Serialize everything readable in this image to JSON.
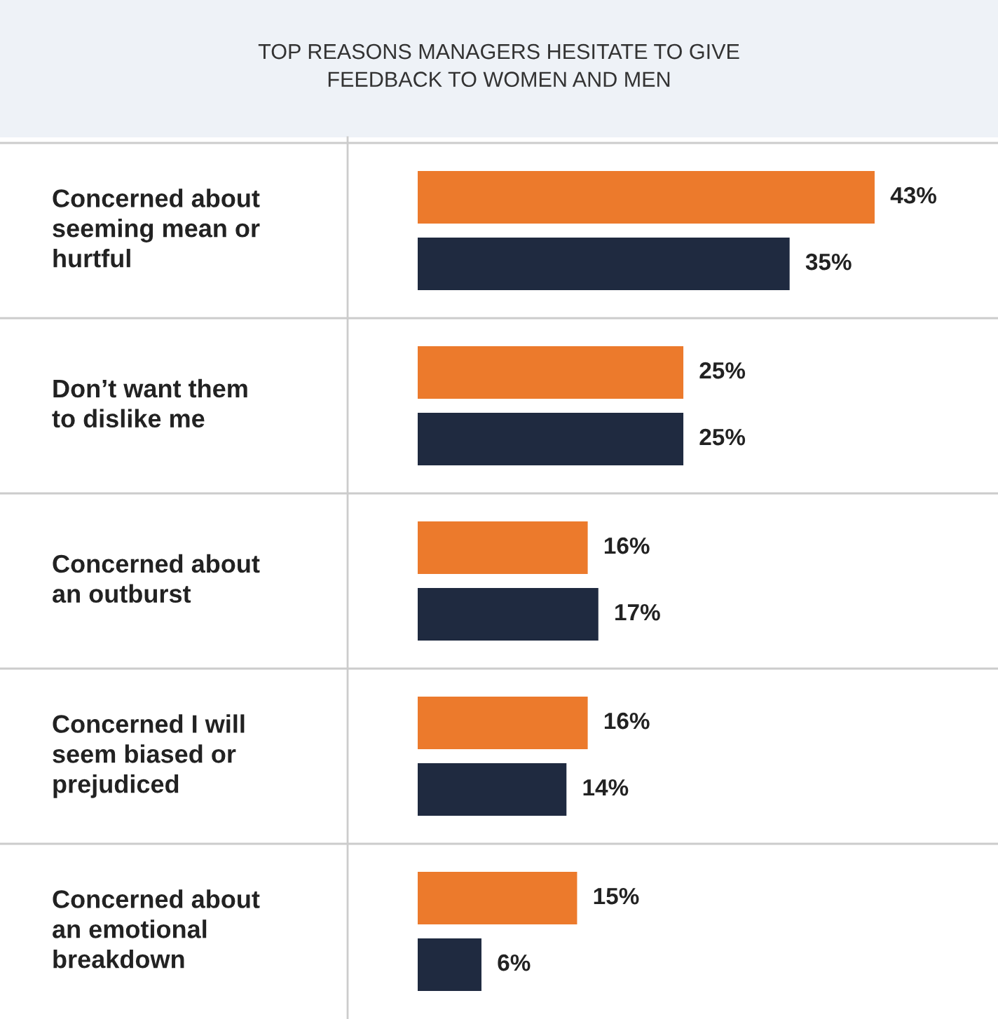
{
  "chart_data": {
    "type": "bar",
    "orientation": "horizontal",
    "title": "TOP REASONS MANAGERS HESITATE TO GIVE\nFEEDBACK TO WOMEN AND MEN",
    "categories": [
      "Concerned about\nseeming mean or\nhurtful",
      "Don’t want them\nto dislike me",
      "Concerned about\nan outburst",
      "Concerned I will\nseem biased or\nprejudiced",
      "Concerned about\nan emotional\nbreakdown"
    ],
    "series": [
      {
        "color": "#ec7a2c",
        "values": [
          43,
          25,
          16,
          16,
          15
        ],
        "value_labels": [
          "43%",
          "25%",
          "16%",
          "16%",
          "15%"
        ]
      },
      {
        "color": "#1f2a40",
        "values": [
          35,
          25,
          17,
          14,
          6
        ],
        "value_labels": [
          "35%",
          "25%",
          "17%",
          "14%",
          "6%"
        ]
      }
    ]
  }
}
